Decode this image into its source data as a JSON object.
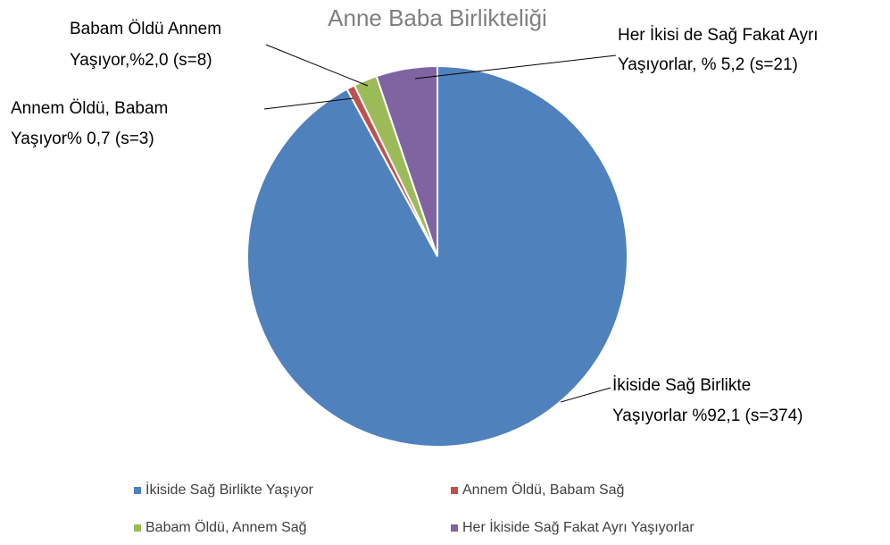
{
  "chart_data": {
    "type": "pie",
    "title": "Anne Baba Birlikteliği",
    "categories": [
      "İkiside Sağ Birlikte Yaşıyor",
      "Annem Öldü, Babam Sağ",
      "Babam Öldü, Annem Sağ",
      "Her İkiside Sağ Fakat Ayrı Yaşıyorlar"
    ],
    "values": [
      92.1,
      0.7,
      2.0,
      5.2
    ],
    "value_labels": [
      [
        "İkiside Sağ Birlikte",
        "Yaşıyorlar %92,1 (s=374)"
      ],
      [
        "Annem Öldü, Babam",
        "Yaşıyor% 0,7 (s=3)"
      ],
      [
        "Babam Öldü Annem",
        "Yaşıyor,%2,0  (s=8)"
      ],
      [
        "Her İkisi de Sağ Fakat Ayrı",
        "Yaşıyorlar, % 5,2 (s=21)"
      ]
    ],
    "colors": [
      "#4f81bd",
      "#c0504d",
      "#9bbb59",
      "#8064a2"
    ],
    "legend": "bottom"
  }
}
